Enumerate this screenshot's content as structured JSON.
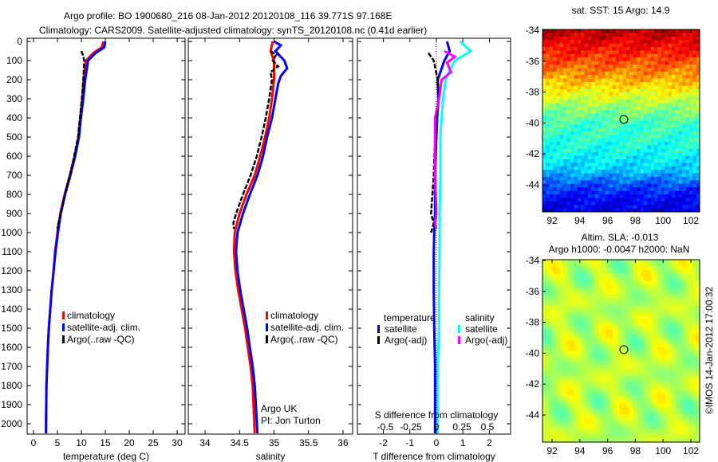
{
  "title_line1": "Argo profile: BO 1900680_216 08-Jan-2012 20120108_116 39.771S 97.168E",
  "title_line2": "Climatology: CARS2009. Satellite-adjusted climatology: synTS_20120108.nc (0.41d earlier)",
  "credit": "©IMOS 14-Jan-2012 17:00:32",
  "colors": {
    "climatology": "#ff0000",
    "satellite": "#0000ff",
    "argo": "#000000",
    "sal_satellite": "#00ffff",
    "sal_argo": "#ff00ff"
  },
  "chart_data": [
    {
      "type": "line",
      "name": "temperature-profile",
      "xlabel": "temperature (deg C)",
      "ylabel": "",
      "xticks": [
        0,
        5,
        10,
        15,
        20,
        25,
        30
      ],
      "yticks": [
        0,
        100,
        200,
        300,
        400,
        500,
        600,
        700,
        800,
        900,
        1000,
        1100,
        1200,
        1300,
        1400,
        1500,
        1600,
        1700,
        1800,
        1900,
        2000
      ],
      "xlim": [
        -1.33,
        31.67
      ],
      "ylim": [
        2054,
        -17
      ],
      "legend": [
        "climatology",
        "satellite-adj. clim.",
        "Argo(..raw -QC)"
      ],
      "series": [
        {
          "name": "climatology",
          "color": "red",
          "depth": [
            0,
            30,
            60,
            100,
            200,
            300,
            400,
            500,
            600,
            700,
            800,
            900,
            1000,
            1100,
            1200,
            1300,
            1400,
            1500,
            1600,
            1800,
            2050
          ],
          "values": [
            14.6,
            14.3,
            12.5,
            11.0,
            10.5,
            10.2,
            9.8,
            9.4,
            8.6,
            7.6,
            6.5,
            5.6,
            5.0,
            4.5,
            4.2,
            3.8,
            3.5,
            3.2,
            3.0,
            2.7,
            2.6
          ]
        },
        {
          "name": "satellite-adj. clim.",
          "color": "blue",
          "depth": [
            0,
            30,
            60,
            100,
            200,
            300,
            400,
            500,
            600,
            700,
            800,
            900,
            1000,
            1100,
            1200,
            1300,
            1400,
            1500,
            1600,
            1800,
            2050
          ],
          "values": [
            15.0,
            14.8,
            13.0,
            11.4,
            10.8,
            10.4,
            9.9,
            9.5,
            8.7,
            7.7,
            6.6,
            5.7,
            5.1,
            4.6,
            4.2,
            3.8,
            3.5,
            3.2,
            3.0,
            2.7,
            2.6
          ]
        },
        {
          "name": "Argo(..raw -QC)",
          "color": "black",
          "depth": [
            50,
            70,
            100,
            150,
            200,
            300,
            400,
            500,
            600,
            700,
            800,
            900,
            950,
            980
          ],
          "values": [
            10.0,
            10.3,
            10.6,
            10.5,
            10.4,
            10.1,
            9.7,
            9.3,
            8.5,
            7.6,
            6.6,
            5.7,
            5.2,
            5.0
          ]
        }
      ]
    },
    {
      "type": "line",
      "name": "salinity-profile",
      "xlabel": "salinity",
      "xticks": [
        34,
        34.5,
        35,
        35.5,
        36
      ],
      "xlim": [
        33.757,
        36.139
      ],
      "ylim": [
        2054,
        -17
      ],
      "legend": [
        "climatology",
        "satellite-adj. clim.",
        "Argo(..raw -QC)"
      ],
      "annotation": [
        "Argo UK",
        "PI: Jon Turton"
      ],
      "series": [
        {
          "name": "climatology",
          "color": "red",
          "depth": [
            0,
            50,
            100,
            200,
            300,
            400,
            500,
            600,
            700,
            800,
            900,
            1000,
            1100,
            1200,
            1300,
            1400,
            1500,
            1600,
            1700,
            1800,
            2050
          ],
          "values": [
            34.98,
            34.95,
            35.0,
            35.0,
            34.97,
            34.93,
            34.87,
            34.8,
            34.72,
            34.6,
            34.5,
            34.43,
            34.42,
            34.44,
            34.48,
            34.53,
            34.58,
            34.62,
            34.66,
            34.69,
            34.72
          ]
        },
        {
          "name": "satellite-adj. clim.",
          "color": "blue",
          "depth": [
            0,
            20,
            50,
            100,
            140,
            180,
            220,
            300,
            400,
            500,
            600,
            700,
            800,
            900,
            1000,
            1100,
            1200,
            1300,
            1400,
            1500,
            1600,
            1700,
            1800,
            2050
          ],
          "values": [
            35.0,
            35.1,
            35.02,
            35.15,
            35.19,
            35.1,
            35.06,
            35.02,
            34.97,
            34.9,
            34.84,
            34.76,
            34.65,
            34.55,
            34.47,
            34.45,
            34.47,
            34.51,
            34.56,
            34.61,
            34.65,
            34.69,
            34.72,
            34.76
          ]
        },
        {
          "name": "Argo(..raw -QC)",
          "color": "black",
          "depth": [
            50,
            70,
            100,
            130,
            160,
            200,
            300,
            400,
            500,
            600,
            700,
            800,
            900,
            950,
            980
          ],
          "values": [
            34.95,
            35.03,
            34.98,
            35.06,
            34.95,
            34.97,
            34.93,
            34.88,
            34.82,
            34.75,
            34.66,
            34.55,
            34.45,
            34.41,
            34.42
          ]
        }
      ]
    },
    {
      "type": "line",
      "name": "difference-profile",
      "xlabel": "T difference from climatology",
      "xlabel_top": "S difference from climatology",
      "xticks": [
        -2,
        -1,
        0,
        1,
        2
      ],
      "xticks_top": [
        -0.5,
        -0.25,
        0,
        0.25,
        0.5
      ],
      "xlim": [
        -2.98,
        2.8
      ],
      "legend_titles": [
        "temperature",
        "salinity"
      ],
      "legend": [
        "satellite",
        "Argo(-adj)",
        "satellite",
        "Argo(-adj)"
      ],
      "series": [
        {
          "name": "temperature satellite",
          "color": "blue",
          "depth": [
            0,
            50,
            100,
            200,
            300,
            400,
            500,
            700,
            900,
            1000,
            1100,
            1300,
            1500,
            1700,
            2050
          ],
          "values": [
            0.4,
            0.5,
            0.3,
            0.05,
            0.08,
            0.03,
            0,
            -0.05,
            -0.05,
            -0.08,
            -0.1,
            -0.1,
            -0.08,
            -0.05,
            -0.05
          ]
        },
        {
          "name": "temperature Argo(-adj)",
          "color": "black",
          "depth": [
            60,
            100,
            200,
            300,
            400,
            500,
            700,
            900,
            950,
            1000
          ],
          "values": [
            -0.3,
            -0.1,
            0.05,
            0.1,
            0.0,
            -0.05,
            -0.1,
            -0.2,
            -0.1,
            -0.2
          ]
        },
        {
          "name": "salinity satellite",
          "color": "cyan",
          "depth": [
            0,
            50,
            100,
            150,
            200,
            300,
            400,
            500,
            700,
            900,
            1100,
            1300,
            1500,
            1700,
            2050
          ],
          "values": [
            0.9,
            1.3,
            0.7,
            0.5,
            0.35,
            0.25,
            0.2,
            0.15,
            0.15,
            0.12,
            0.12,
            0.1,
            0.1,
            0.05,
            0.05
          ]
        },
        {
          "name": "salinity Argo(-adj)",
          "color": "magenta",
          "depth": [
            50,
            80,
            110,
            160,
            200,
            300,
            400,
            500,
            700,
            900,
            950,
            980
          ],
          "values": [
            0.3,
            0.7,
            0.4,
            0.55,
            0.2,
            0.1,
            -0.05,
            -0.05,
            -0.05,
            0.0,
            -0.05,
            0.0
          ]
        }
      ]
    },
    {
      "type": "heatmap",
      "name": "sst-map",
      "title": "sat. SST: 15 Argo: 14.9",
      "xticks": [
        92,
        94,
        96,
        98,
        100,
        102
      ],
      "yticks": [
        -34,
        -36,
        -38,
        -40,
        -42,
        -44
      ],
      "xlim": [
        91.31,
        102.63
      ],
      "ylim": [
        -45.75,
        -33.95
      ],
      "row_levels": {
        "lat": [
          -34,
          -35,
          -36,
          -37,
          -38,
          -39,
          -40,
          -41,
          -42,
          -43,
          -44,
          -45,
          -45.75
        ],
        "level": [
          0.95,
          0.88,
          0.8,
          0.72,
          0.62,
          0.52,
          0.44,
          0.42,
          0.38,
          0.33,
          0.2,
          0.12,
          0.1
        ]
      },
      "marker": {
        "lon": 97.168,
        "lat": -39.771
      }
    },
    {
      "type": "heatmap",
      "name": "sla-map",
      "title": "Altim. SLA: -0.013",
      "subtitle": "Argo h1000: -0.0047 h2000: NaN",
      "xticks": [
        92,
        94,
        96,
        98,
        100,
        102
      ],
      "yticks": [
        -34,
        -36,
        -38,
        -40,
        -42,
        -44
      ],
      "xlim": [
        91.31,
        102.63
      ],
      "ylim": [
        -45.75,
        -33.95
      ],
      "level_range": [
        0.45,
        0.66
      ],
      "marker": {
        "lon": 97.168,
        "lat": -39.771
      }
    }
  ]
}
